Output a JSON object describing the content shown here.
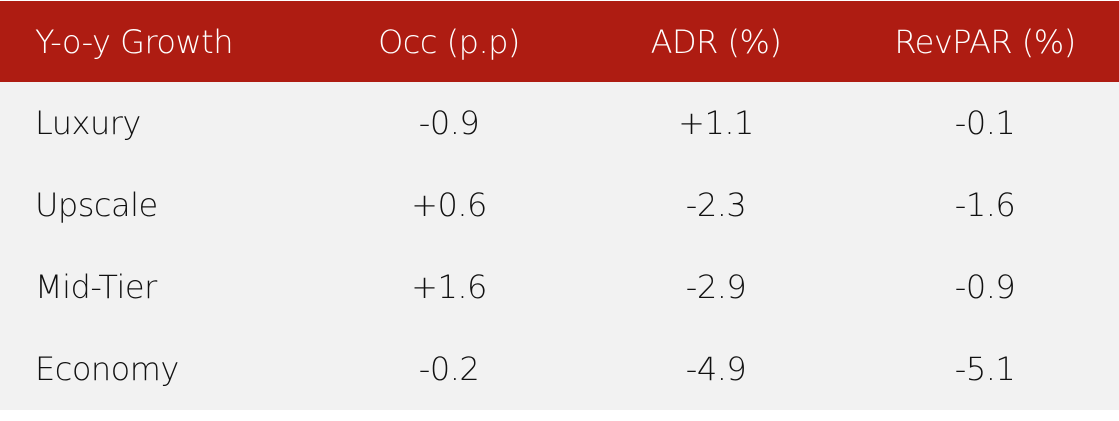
{
  "header": [
    "Y-o-y Growth",
    "Occ (p.p)",
    "ADR (%)",
    "RevPAR (%)"
  ],
  "rows": [
    [
      "Luxury",
      "-0.9",
      "+1.1",
      "-0.1"
    ],
    [
      "Upscale",
      "+0.6",
      "-2.3",
      "-1.6"
    ],
    [
      "Mid-Tier",
      "+1.6",
      "-2.9",
      "-0.9"
    ],
    [
      "Economy",
      "-0.2",
      "-4.9",
      "-5.1"
    ]
  ],
  "colors": {
    "header_bg": "#AE1C12",
    "body_bg": "#F2F2F2"
  }
}
